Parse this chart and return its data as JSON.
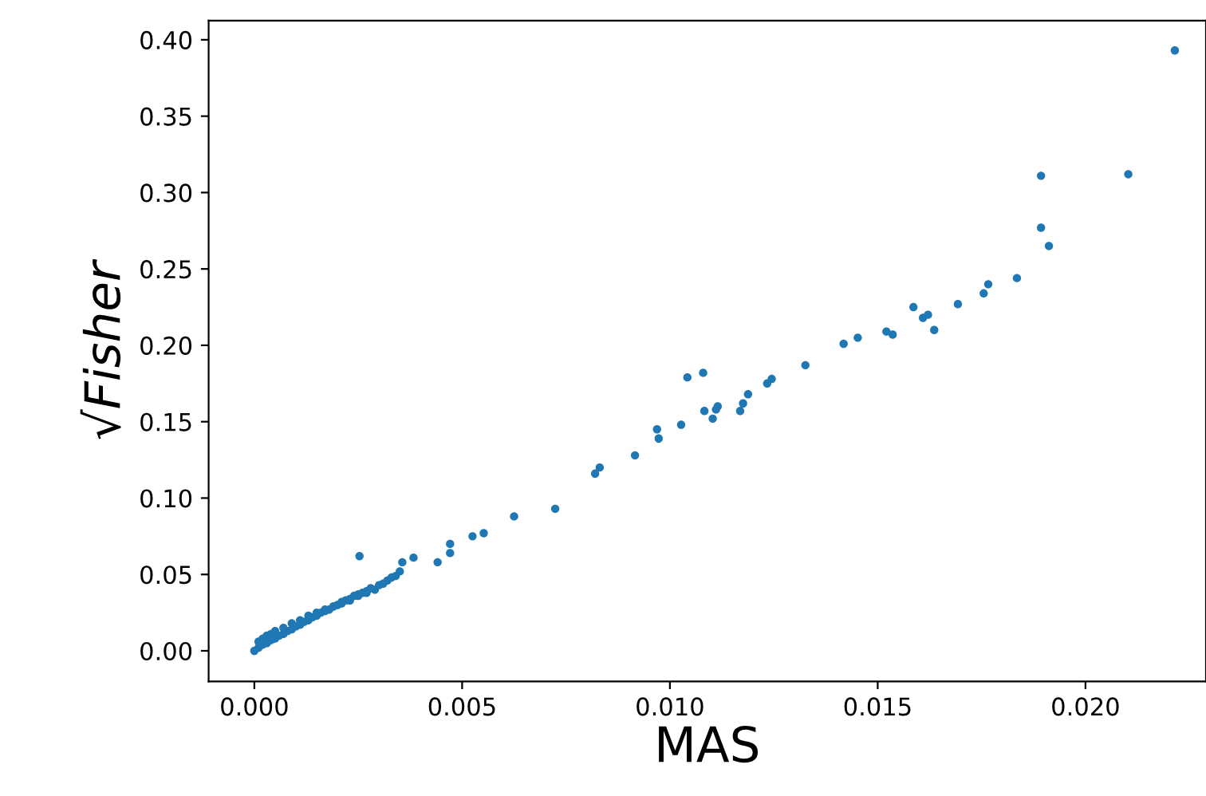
{
  "chart_data": {
    "type": "scatter",
    "xlabel": "MAS",
    "ylabel": "√Fisher",
    "color": "#1f77b4",
    "marker": "circle",
    "grid": false,
    "xlim": [
      -0.0011,
      0.0229
    ],
    "ylim": [
      -0.02,
      0.4125
    ],
    "xticks": [
      {
        "value": 0,
        "label": "0.000"
      },
      {
        "value": 0.005,
        "label": "0.005"
      },
      {
        "value": 0.01,
        "label": "0.010"
      },
      {
        "value": 0.015,
        "label": "0.015"
      },
      {
        "value": 0.02,
        "label": "0.020"
      }
    ],
    "yticks": [
      {
        "value": 0,
        "label": "0.00"
      },
      {
        "value": 0.05,
        "label": "0.05"
      },
      {
        "value": 0.1,
        "label": "0.10"
      },
      {
        "value": 0.15,
        "label": "0.15"
      },
      {
        "value": 0.2,
        "label": "0.20"
      },
      {
        "value": 0.25,
        "label": "0.25"
      },
      {
        "value": 0.3,
        "label": "0.30"
      },
      {
        "value": 0.35,
        "label": "0.35"
      },
      {
        "value": 0.4,
        "label": "0.40"
      }
    ],
    "x": [
      0.02215,
      0.01893,
      0.02103,
      0.01893,
      0.01912,
      0.01835,
      0.01755,
      0.01766,
      0.01693,
      0.01586,
      0.01609,
      0.01636,
      0.01621,
      0.01521,
      0.01536,
      0.01452,
      0.01418,
      0.01326,
      0.01234,
      0.01245,
      0.01188,
      0.01176,
      0.01169,
      0.01115,
      0.01103,
      0.0108,
      0.01042,
      0.01083,
      0.01111,
      0.01027,
      0.00969,
      0.00973,
      0.00916,
      0.0082,
      0.00831,
      0.00724,
      0.00625,
      0.00552,
      0.00525,
      0.00471,
      0.00471,
      0.00441,
      0.00383,
      0.00356,
      0.00253,
      0.0,
      0.0001,
      0.0002,
      0.0003,
      0.0004,
      0.0005,
      0.0006,
      0.0007,
      0.0008,
      0.0009,
      0.001,
      0.0011,
      0.0012,
      0.0013,
      0.0014,
      0.0015,
      0.0016,
      0.0017,
      0.0018,
      0.0019,
      0.002,
      0.0021,
      0.0022,
      0.0023,
      0.0024,
      0.0025,
      0.0026,
      0.0027,
      0.0028,
      0.003,
      0.0032,
      0.0034,
      0.0003,
      0.0005,
      0.0007,
      0.0009,
      0.0011,
      0.0013,
      0.0015,
      0.0017,
      0.0019,
      0.0021,
      0.0023,
      0.0025,
      0.0027,
      0.0029,
      0.0031,
      0.0033,
      0.0035,
      0.0001,
      0.0002,
      0.0004
    ],
    "values": [
      0.393,
      0.311,
      0.312,
      0.277,
      0.265,
      0.244,
      0.234,
      0.24,
      0.227,
      0.225,
      0.218,
      0.21,
      0.22,
      0.209,
      0.207,
      0.205,
      0.201,
      0.187,
      0.175,
      0.178,
      0.168,
      0.162,
      0.157,
      0.16,
      0.152,
      0.182,
      0.179,
      0.157,
      0.158,
      0.148,
      0.145,
      0.139,
      0.128,
      0.116,
      0.12,
      0.093,
      0.088,
      0.077,
      0.075,
      0.07,
      0.064,
      0.058,
      0.061,
      0.058,
      0.062,
      0.0,
      0.002,
      0.004,
      0.005,
      0.007,
      0.008,
      0.01,
      0.011,
      0.013,
      0.014,
      0.016,
      0.017,
      0.019,
      0.02,
      0.022,
      0.023,
      0.025,
      0.026,
      0.027,
      0.029,
      0.03,
      0.032,
      0.033,
      0.034,
      0.036,
      0.037,
      0.038,
      0.039,
      0.041,
      0.043,
      0.046,
      0.049,
      0.01,
      0.013,
      0.015,
      0.018,
      0.02,
      0.023,
      0.025,
      0.027,
      0.029,
      0.031,
      0.033,
      0.036,
      0.038,
      0.04,
      0.044,
      0.048,
      0.052,
      0.006,
      0.008,
      0.011
    ]
  }
}
